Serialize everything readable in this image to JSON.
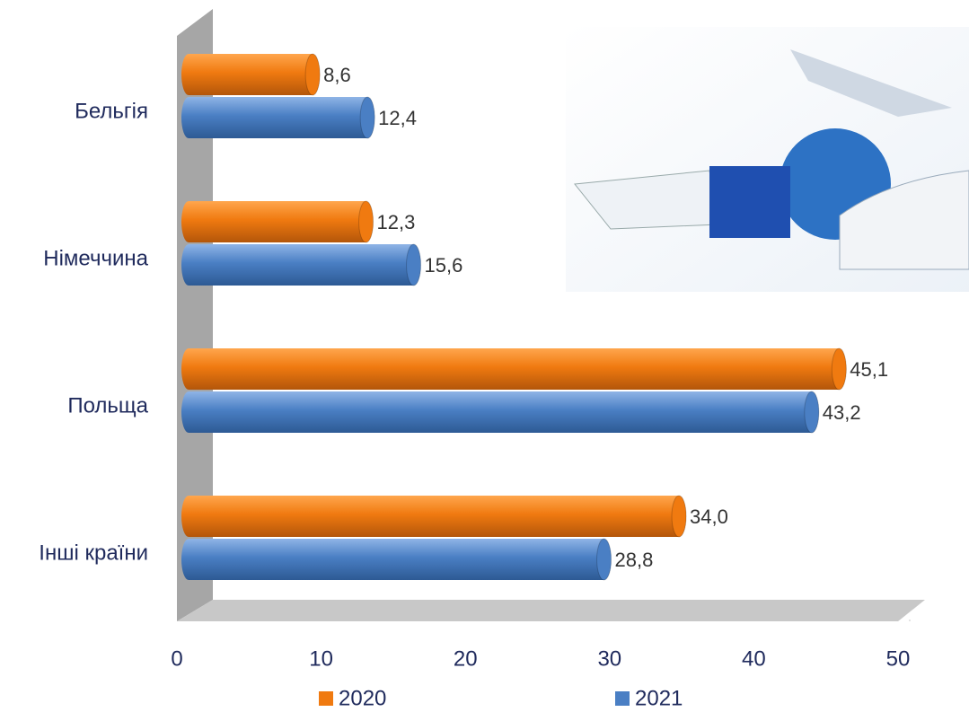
{
  "chart_data": {
    "type": "bar",
    "orientation": "horizontal",
    "categories": [
      "Бельгія",
      "Німеччина",
      "Польща",
      "Інші країни"
    ],
    "series": [
      {
        "name": "2020",
        "color": "#f07a10",
        "values": [
          8.6,
          12.3,
          45.1,
          34.0
        ],
        "value_labels": [
          "8,6",
          "12,3",
          "45,1",
          "34,0"
        ]
      },
      {
        "name": "2021",
        "color": "#4a7fc4",
        "values": [
          12.4,
          15.6,
          43.2,
          28.8
        ],
        "value_labels": [
          "12,4",
          "15,6",
          "43,2",
          "28,8"
        ]
      }
    ],
    "xlim": [
      0,
      50
    ],
    "xticks": [
      0,
      10,
      20,
      30,
      40,
      50
    ],
    "legend": "bottom"
  }
}
